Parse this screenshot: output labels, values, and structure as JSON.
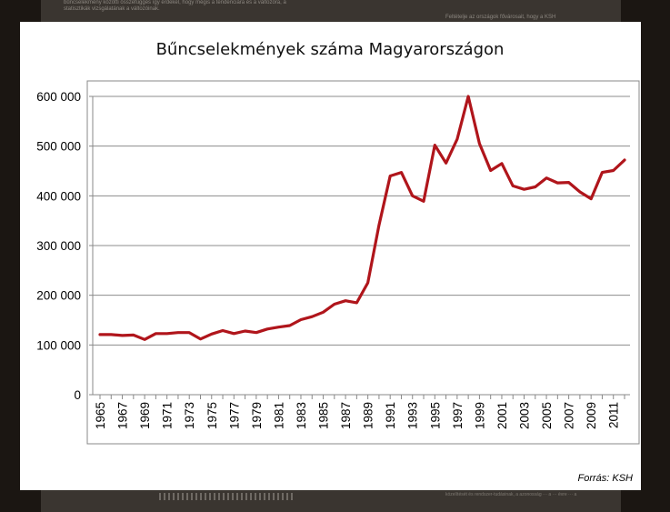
{
  "background": {
    "left_text": "bűncselekmény közötti összefüggés így érdekel, hogy mégis a tendenciára és a változóra, a\nstatisztikák vizsgálatának a változóinak.",
    "right_text": "Feltételje az országok fővárosait, hogy a KSH",
    "bottom_right_text": "közelítését és rendszer-tudásinak, a\nazonosság ··· a ··· évre ··· a"
  },
  "colors": {
    "line": "#b0151b",
    "grid": "#8c8c8c",
    "axis": "#888888"
  },
  "source_label": "Forrás: KSH",
  "chart_data": {
    "type": "line",
    "title": "Bűncselekmények száma Magyarországon",
    "xlabel": "",
    "ylabel": "",
    "ylim": [
      0,
      600000
    ],
    "yticks": [
      0,
      100000,
      200000,
      300000,
      400000,
      500000,
      600000
    ],
    "ytick_labels": [
      "0",
      "100 000",
      "200 000",
      "300 000",
      "400 000",
      "500 000",
      "600 000"
    ],
    "xtick_labels": [
      "1965",
      "1967",
      "1969",
      "1971",
      "1973",
      "1975",
      "1977",
      "1979",
      "1981",
      "1983",
      "1985",
      "1987",
      "1989",
      "1991",
      "1993",
      "1995",
      "1997",
      "1999",
      "2001",
      "2003",
      "2005",
      "2007",
      "2009",
      "2011"
    ],
    "grid": true,
    "legend": "none",
    "series": [
      {
        "x": [
          1965,
          1966,
          1967,
          1968,
          1969,
          1970,
          1971,
          1972,
          1973,
          1974,
          1975,
          1976,
          1977,
          1978,
          1979,
          1980,
          1981,
          1982,
          1983,
          1984,
          1985,
          1986,
          1987,
          1988,
          1989,
          1990,
          1991,
          1992,
          1993,
          1994,
          1995,
          1996,
          1997,
          1998,
          1999,
          2000,
          2001,
          2002,
          2003,
          2004,
          2005,
          2006,
          2007,
          2008,
          2009,
          2010,
          2011,
          2012
        ],
        "values": [
          121000,
          121000,
          119000,
          120000,
          111000,
          123000,
          123000,
          125000,
          125000,
          112000,
          122000,
          129000,
          123000,
          128000,
          125000,
          132000,
          136000,
          139000,
          151000,
          157000,
          166000,
          182000,
          189000,
          185000,
          225000,
          341000,
          440000,
          447000,
          400000,
          389000,
          502000,
          466000,
          514000,
          600000,
          505000,
          451000,
          465000,
          420000,
          413000,
          418000,
          436000,
          426000,
          427000,
          408000,
          394000,
          447000,
          451000,
          472000
        ]
      }
    ]
  }
}
